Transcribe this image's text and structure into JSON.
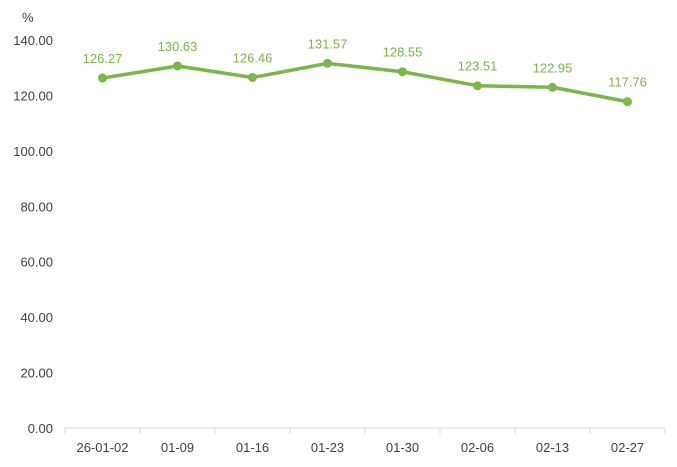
{
  "chart_data": {
    "type": "line",
    "title": "",
    "ylabel": "%",
    "xlabel": "",
    "categories": [
      "26-01-02",
      "01-09",
      "01-16",
      "01-23",
      "01-30",
      "02-06",
      "02-13",
      "02-27"
    ],
    "series": [
      {
        "values": [
          126.27,
          130.63,
          126.46,
          131.57,
          128.55,
          123.51,
          122.95,
          117.76
        ]
      }
    ],
    "data_labels": [
      "126.27",
      "130.63",
      "126.46",
      "131.57",
      "128.55",
      "123.51",
      "122.95",
      "117.76"
    ],
    "y_ticks": [
      "0.00",
      "20.00",
      "40.00",
      "60.00",
      "80.00",
      "100.00",
      "120.00",
      "140.00"
    ],
    "ylim": [
      0,
      140
    ],
    "grid": false,
    "legend": "none",
    "line_color": "#7AB648",
    "axis_color": "#D9D9D9",
    "tick_color": "#404040"
  }
}
